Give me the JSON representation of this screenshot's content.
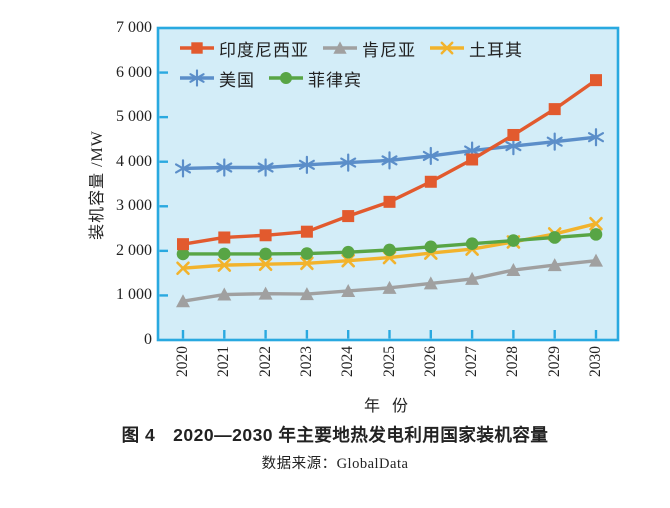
{
  "figure": {
    "caption": "图 4　2020—2030 年主要地热发电利用国家装机容量",
    "source": "数据来源：GlobalData"
  },
  "chart_data": {
    "type": "line",
    "title": "",
    "xlabel": "年 份",
    "ylabel": "装机容量 /MW",
    "x": [
      2020,
      2021,
      2022,
      2023,
      2024,
      2025,
      2026,
      2027,
      2028,
      2029,
      2030
    ],
    "x_tick_labels": [
      "2020",
      "2021",
      "2022",
      "2023",
      "2024",
      "2025",
      "2026",
      "2027",
      "2028",
      "2029",
      "2030"
    ],
    "ylim": [
      0,
      7000
    ],
    "y_ticks": [
      0,
      1000,
      2000,
      3000,
      4000,
      5000,
      6000,
      7000
    ],
    "y_tick_labels": [
      "0",
      "1 000",
      "2 000",
      "3 000",
      "4 000",
      "5 000",
      "6 000",
      "7 000"
    ],
    "grid": false,
    "legend_position": "top-left-inside",
    "legend_rows": [
      3,
      2
    ],
    "plot_bg_color": "#d3edf8",
    "axis_color": "#29a9e0",
    "series": [
      {
        "key": "indonesia",
        "name": "印度尼西亚",
        "color": "#e25a2e",
        "marker": "square",
        "values": [
          2150,
          2300,
          2350,
          2430,
          2780,
          3100,
          3550,
          4050,
          4600,
          5180,
          5830
        ]
      },
      {
        "key": "kenya",
        "name": "肯尼亚",
        "color": "#a0a0a0",
        "marker": "triangle",
        "values": [
          870,
          1020,
          1040,
          1030,
          1100,
          1170,
          1270,
          1370,
          1570,
          1680,
          1780
        ]
      },
      {
        "key": "turkey",
        "name": "土耳其",
        "color": "#f2b32c",
        "marker": "x",
        "values": [
          1610,
          1680,
          1700,
          1720,
          1780,
          1850,
          1950,
          2040,
          2200,
          2380,
          2610
        ]
      },
      {
        "key": "usa",
        "name": "美国",
        "color": "#5b8ec9",
        "marker": "asterisk",
        "values": [
          3850,
          3870,
          3870,
          3930,
          3980,
          4030,
          4130,
          4250,
          4350,
          4450,
          4550
        ]
      },
      {
        "key": "philippines",
        "name": "菲律宾",
        "color": "#58a545",
        "marker": "circle",
        "values": [
          1930,
          1930,
          1930,
          1940,
          1970,
          2020,
          2090,
          2160,
          2230,
          2300,
          2370
        ]
      }
    ]
  }
}
